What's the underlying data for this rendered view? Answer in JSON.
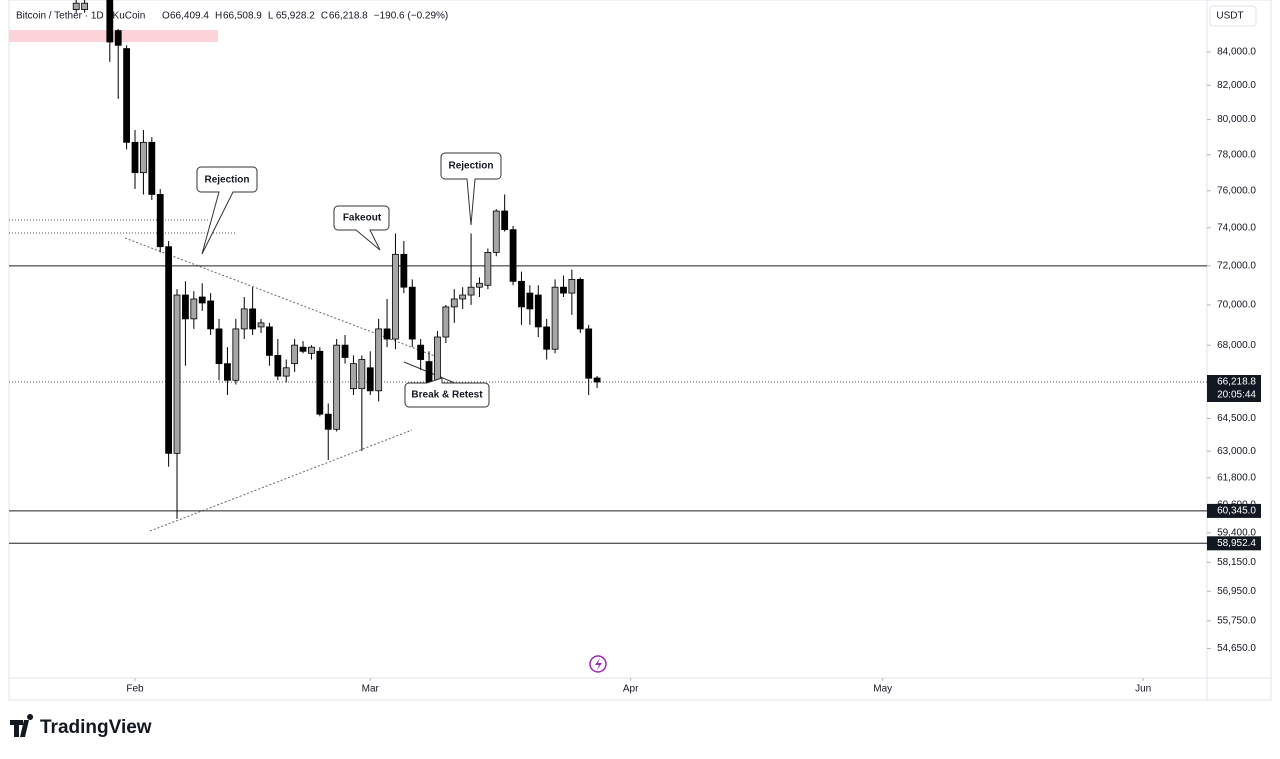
{
  "chart_data": {
    "type": "candlestick",
    "header": {
      "symbol": "Bitcoin / Tether · 1D · KuCoin",
      "ohlc": [
        [
          "O",
          "66,409.4"
        ],
        [
          "H",
          "66,508.9"
        ],
        [
          "L",
          "65,928.2"
        ],
        [
          "C",
          "66,218.8"
        ]
      ],
      "change": "−190.6 (−0.29%)"
    },
    "currency": "USDT",
    "annotations": [
      "Rejection",
      "Fakeout",
      "Rejection",
      "Break & Retest"
    ],
    "x": [
      -7,
      -6,
      -3,
      -2,
      -1,
      0,
      1,
      2,
      3,
      4,
      5,
      6,
      7,
      8,
      9,
      10,
      11,
      12,
      13,
      14,
      15,
      16,
      17,
      18,
      19,
      20,
      21,
      22,
      23,
      24,
      25,
      26,
      27,
      28,
      29,
      30,
      31,
      32,
      33,
      34,
      35,
      36,
      37,
      38,
      39,
      40,
      41,
      42,
      43,
      44,
      45,
      46,
      47,
      48,
      49,
      50,
      51,
      52,
      53,
      54,
      55
    ],
    "open": [
      86600,
      86600,
      87200,
      85300,
      84200,
      78700,
      77000,
      78700,
      75800,
      73000,
      62900,
      70500,
      69300,
      70400,
      70200,
      68800,
      67100,
      66300,
      68800,
      69800,
      68900,
      68900,
      67500,
      66500,
      67100,
      67900,
      67600,
      67700,
      64700,
      64000,
      68000,
      65900,
      65900,
      66900,
      65800,
      68800,
      68300,
      72600,
      70900,
      68000,
      67200,
      66000,
      68400,
      69900,
      70300,
      70500,
      70900,
      71000,
      72700,
      74900,
      73900,
      71200,
      70600,
      70500,
      68900,
      67800,
      70900,
      70600,
      71300,
      68800,
      66409.4
    ],
    "high": [
      87200,
      87200,
      87200,
      85400,
      84400,
      79400,
      79400,
      79000,
      76100,
      73300,
      70800,
      71200,
      70700,
      71100,
      70600,
      69300,
      67900,
      69300,
      70400,
      70900,
      69300,
      69100,
      68300,
      67300,
      68300,
      68200,
      68000,
      67900,
      65200,
      68300,
      68500,
      67500,
      67500,
      67700,
      69300,
      70300,
      73700,
      73300,
      71300,
      68300,
      67700,
      68700,
      70000,
      70800,
      70900,
      73700,
      71400,
      72900,
      75000,
      75800,
      74100,
      71700,
      71000,
      71000,
      69300,
      71300,
      71500,
      71800,
      71400,
      69000,
      66508.9
    ],
    "low": [
      86400,
      86400,
      83400,
      81200,
      78300,
      76100,
      75800,
      75500,
      72700,
      62300,
      60000,
      67000,
      68800,
      69700,
      68500,
      66300,
      65600,
      66100,
      68300,
      68500,
      68600,
      67000,
      66300,
      66200,
      66700,
      67600,
      67300,
      64600,
      62600,
      63900,
      67100,
      65600,
      63000,
      65600,
      65300,
      67900,
      67800,
      70600,
      67900,
      66800,
      65800,
      65700,
      68100,
      69100,
      69800,
      70000,
      70400,
      70800,
      72500,
      73800,
      71000,
      69000,
      69000,
      68400,
      67300,
      67600,
      70400,
      69500,
      68600,
      65600,
      65928.2
    ],
    "close": [
      87000,
      87000,
      84600,
      84400,
      78700,
      77000,
      78700,
      75800,
      73000,
      62900,
      70500,
      69300,
      70300,
      70100,
      68800,
      67100,
      66300,
      68800,
      69800,
      68800,
      69100,
      67500,
      66500,
      66900,
      68000,
      67700,
      67900,
      64700,
      64000,
      68000,
      67400,
      67100,
      67300,
      65800,
      68800,
      68300,
      72600,
      70900,
      68300,
      67300,
      66000,
      68400,
      69900,
      70300,
      70500,
      70900,
      71100,
      72700,
      74900,
      73900,
      71200,
      69900,
      69800,
      68900,
      67800,
      70900,
      70600,
      71300,
      68800,
      66400,
      66218.8
    ],
    "up_color": "#a6a6a6",
    "down_color": "#000000",
    "xlim": [
      -15,
      127.6
    ],
    "xticks": [
      {
        "value": 0,
        "label": "Feb"
      },
      {
        "value": 28,
        "label": "Mar"
      },
      {
        "value": 59,
        "label": "Apr"
      },
      {
        "value": 89,
        "label": "May"
      },
      {
        "value": 120,
        "label": "Jun"
      }
    ],
    "ylim": [
      53500,
      87200
    ],
    "log_scale": true,
    "yticks": [
      {
        "value": 54650,
        "label": "54,650.0"
      },
      {
        "value": 55750,
        "label": "55,750.0"
      },
      {
        "value": 56950,
        "label": "56,950.0"
      },
      {
        "value": 58150,
        "label": "58,150.0"
      },
      {
        "value": 59400,
        "label": "59,400.0"
      },
      {
        "value": 60600,
        "label": "60,600.0"
      },
      {
        "value": 61800,
        "label": "61,800.0"
      },
      {
        "value": 63000,
        "label": "63,000.0"
      },
      {
        "value": 64500,
        "label": "64,500.0"
      },
      {
        "value": 68000,
        "label": "68,000.0"
      },
      {
        "value": 70000,
        "label": "70,000.0"
      },
      {
        "value": 72000,
        "label": "72,000.0"
      },
      {
        "value": 74000,
        "label": "74,000.0"
      },
      {
        "value": 76000,
        "label": "76,000.0"
      },
      {
        "value": 78000,
        "label": "78,000.0"
      },
      {
        "value": 80000,
        "label": "80,000.0"
      },
      {
        "value": 82000,
        "label": "82,000.0"
      },
      {
        "value": 84000,
        "label": "84,000.0"
      }
    ],
    "hlines": [
      {
        "value": 72000
      },
      {
        "value": 60345,
        "label": "60,345.0"
      },
      {
        "value": 58952.4,
        "label": "58,952.4"
      }
    ],
    "last": {
      "value": 66218.8,
      "label": "66,218.8",
      "countdown": "20:05:44"
    },
    "brand": "TradingView"
  }
}
